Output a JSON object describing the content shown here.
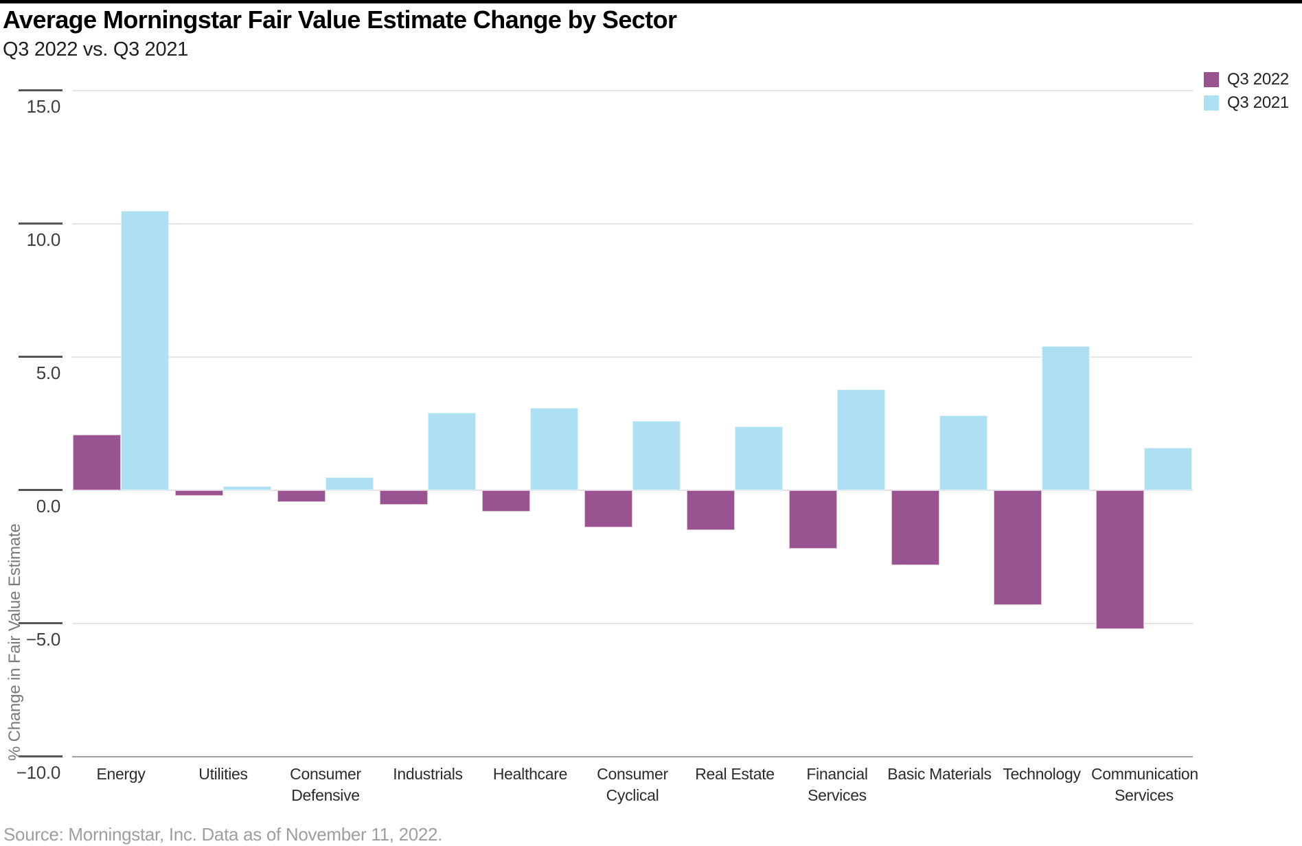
{
  "meta": {
    "title": "Average Morningstar Fair Value Estimate Change by Sector",
    "subtitle": "Q3 2022 vs. Q3 2021",
    "source": "Source: Morningstar, Inc. Data as of November 11, 2022."
  },
  "colors": {
    "q3_2022_purple": "#995391",
    "q3_2021_blue": "#ADE0F3",
    "gridline": "#e4e4e4",
    "axis_line": "#a0a0a0",
    "tick_mark": "#555555",
    "top_rule": "#000000"
  },
  "legend": {
    "items": [
      {
        "label": "Q3 2022",
        "color": "#995391"
      },
      {
        "label": "Q3 2021",
        "color": "#ADE0F3"
      }
    ]
  },
  "chart_data": {
    "type": "bar",
    "title": "Average Morningstar Fair Value Estimate Change by Sector",
    "subtitle": "Q3 2022 vs. Q3 2021",
    "xlabel": "",
    "ylabel": "% Change in Fair Value Estimate",
    "ylim": [
      -10.0,
      15.0
    ],
    "grid": "horizontal",
    "legend_position": "top-right",
    "categories": [
      "Energy",
      "Utilities",
      "Consumer Defensive",
      "Industrials",
      "Healthcare",
      "Consumer Cyclical",
      "Real Estate",
      "Financial Services",
      "Basic Materials",
      "Technology",
      "Communication Services"
    ],
    "series": [
      {
        "name": "Q3 2022",
        "color": "#995391",
        "values": [
          2.1,
          -0.2,
          -0.45,
          -0.55,
          -0.8,
          -1.4,
          -1.5,
          -2.2,
          -2.8,
          -4.3,
          -5.2
        ]
      },
      {
        "name": "Q3 2021",
        "color": "#ADE0F3",
        "values": [
          10.5,
          0.15,
          0.5,
          2.9,
          3.1,
          2.6,
          2.4,
          3.8,
          2.8,
          5.4,
          1.6
        ]
      }
    ],
    "y_ticks": [
      {
        "value": 15.0,
        "label": "15.0"
      },
      {
        "value": 10.0,
        "label": "10.0"
      },
      {
        "value": 5.0,
        "label": "5.0"
      },
      {
        "value": 0.0,
        "label": "0.0"
      },
      {
        "value": -5.0,
        "label": "−5.0"
      },
      {
        "value": -10.0,
        "label": "−10.0"
      }
    ]
  }
}
